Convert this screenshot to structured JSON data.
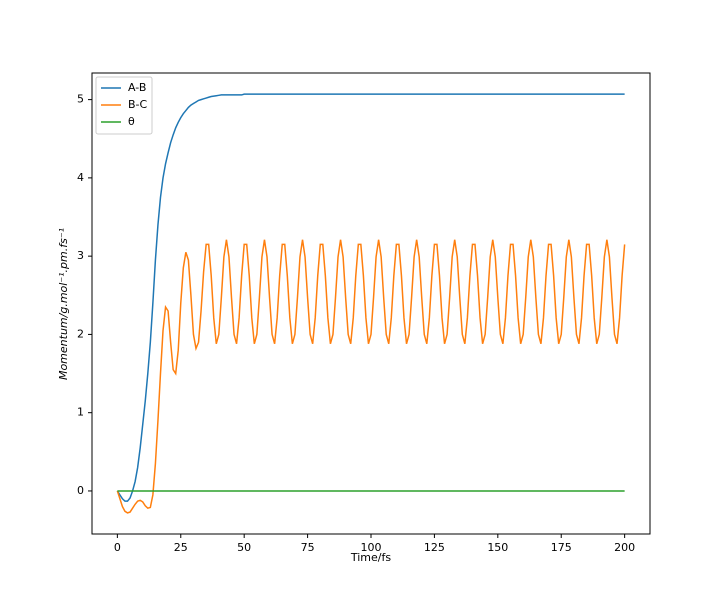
{
  "chart_data": {
    "type": "line",
    "xlabel": "Time/fs",
    "ylabel": "Momentum/g.mol⁻¹.pm.fs⁻¹",
    "x": [
      0,
      1,
      2,
      3,
      4,
      5,
      6,
      7,
      8,
      9,
      10,
      11,
      12,
      13,
      14,
      15,
      16,
      17,
      18,
      19,
      20,
      21,
      22,
      23,
      24,
      25,
      26,
      27,
      28,
      29,
      30,
      31,
      32,
      33,
      34,
      35,
      36,
      37,
      38,
      39,
      40,
      41,
      42,
      43,
      44,
      45,
      46,
      47,
      48,
      49,
      50,
      51,
      52,
      53,
      54,
      55,
      56,
      57,
      58,
      59,
      60,
      61,
      62,
      63,
      64,
      65,
      66,
      67,
      68,
      69,
      70,
      71,
      72,
      73,
      74,
      75,
      76,
      77,
      78,
      79,
      80,
      81,
      82,
      83,
      84,
      85,
      86,
      87,
      88,
      89,
      90,
      91,
      92,
      93,
      94,
      95,
      96,
      97,
      98,
      99,
      100,
      101,
      102,
      103,
      104,
      105,
      106,
      107,
      108,
      109,
      110,
      111,
      112,
      113,
      114,
      115,
      116,
      117,
      118,
      119,
      120,
      121,
      122,
      123,
      124,
      125,
      126,
      127,
      128,
      129,
      130,
      131,
      132,
      133,
      134,
      135,
      136,
      137,
      138,
      139,
      140,
      141,
      142,
      143,
      144,
      145,
      146,
      147,
      148,
      149,
      150,
      151,
      152,
      153,
      154,
      155,
      156,
      157,
      158,
      159,
      160,
      161,
      162,
      163,
      164,
      165,
      166,
      167,
      168,
      169,
      170,
      171,
      172,
      173,
      174,
      175,
      176,
      177,
      178,
      179,
      180,
      181,
      182,
      183,
      184,
      185,
      186,
      187,
      188,
      189,
      190,
      191,
      192,
      193,
      194,
      195,
      196,
      197,
      198,
      199,
      200
    ],
    "series": [
      {
        "name": "A-B",
        "color": "#1f77b4",
        "values": [
          0,
          -0.05,
          -0.1,
          -0.13,
          -0.13,
          -0.09,
          0.0,
          0.12,
          0.3,
          0.55,
          0.85,
          1.15,
          1.5,
          1.9,
          2.4,
          2.95,
          3.4,
          3.75,
          4.0,
          4.18,
          4.32,
          4.45,
          4.55,
          4.64,
          4.71,
          4.77,
          4.82,
          4.86,
          4.9,
          4.93,
          4.95,
          4.97,
          4.99,
          5.0,
          5.01,
          5.02,
          5.03,
          5.04,
          5.045,
          5.05,
          5.055,
          5.06,
          5.06,
          5.06,
          5.06,
          5.06,
          5.06,
          5.06,
          5.06,
          5.06,
          5.07,
          5.07,
          5.07,
          5.07,
          5.07,
          5.07,
          5.07,
          5.07,
          5.07,
          5.07,
          5.07,
          5.07,
          5.07,
          5.07,
          5.07,
          5.07,
          5.07,
          5.07,
          5.07,
          5.07,
          5.07,
          5.07,
          5.07,
          5.07,
          5.07,
          5.07,
          5.07,
          5.07,
          5.07,
          5.07,
          5.07,
          5.07,
          5.07,
          5.07,
          5.07,
          5.07,
          5.07,
          5.07,
          5.07,
          5.07,
          5.07,
          5.07,
          5.07,
          5.07,
          5.07,
          5.07,
          5.07,
          5.07,
          5.07,
          5.07,
          5.07,
          5.07,
          5.07,
          5.07,
          5.07,
          5.07,
          5.07,
          5.07,
          5.07,
          5.07,
          5.07,
          5.07,
          5.07,
          5.07,
          5.07,
          5.07,
          5.07,
          5.07,
          5.07,
          5.07,
          5.07,
          5.07,
          5.07,
          5.07,
          5.07,
          5.07,
          5.07,
          5.07,
          5.07,
          5.07,
          5.07,
          5.07,
          5.07,
          5.07,
          5.07,
          5.07,
          5.07,
          5.07,
          5.07,
          5.07,
          5.07,
          5.07,
          5.07,
          5.07,
          5.07,
          5.07,
          5.07,
          5.07,
          5.07,
          5.07,
          5.07,
          5.07,
          5.07,
          5.07,
          5.07,
          5.07,
          5.07,
          5.07,
          5.07,
          5.07,
          5.07,
          5.07,
          5.07,
          5.07,
          5.07,
          5.07,
          5.07,
          5.07,
          5.07,
          5.07,
          5.07,
          5.07,
          5.07,
          5.07,
          5.07,
          5.07,
          5.07,
          5.07,
          5.07,
          5.07,
          5.07,
          5.07,
          5.07,
          5.07,
          5.07,
          5.07,
          5.07,
          5.07,
          5.07,
          5.07,
          5.07,
          5.07,
          5.07,
          5.07,
          5.07,
          5.07,
          5.07,
          5.07,
          5.07,
          5.07,
          5.07
        ]
      },
      {
        "name": "B-C",
        "color": "#ff7f0e",
        "values": [
          0,
          -0.1,
          -0.2,
          -0.26,
          -0.28,
          -0.27,
          -0.22,
          -0.17,
          -0.13,
          -0.12,
          -0.14,
          -0.19,
          -0.22,
          -0.21,
          -0.05,
          0.35,
          0.9,
          1.5,
          2.05,
          2.35,
          2.3,
          1.9,
          1.55,
          1.5,
          1.8,
          2.4,
          2.85,
          3.05,
          2.95,
          2.5,
          2.0,
          1.82,
          1.9,
          2.3,
          2.8,
          3.15,
          3.15,
          2.75,
          2.21,
          1.88,
          2.0,
          2.47,
          2.99,
          3.21,
          2.99,
          2.47,
          2.0,
          1.88,
          2.21,
          2.75,
          3.15,
          3.15,
          2.75,
          2.21,
          1.88,
          2.0,
          2.47,
          2.99,
          3.21,
          2.99,
          2.47,
          2.0,
          1.88,
          2.21,
          2.75,
          3.15,
          3.15,
          2.75,
          2.21,
          1.88,
          2.0,
          2.47,
          2.99,
          3.21,
          2.99,
          2.47,
          2.0,
          1.88,
          2.21,
          2.75,
          3.15,
          3.15,
          2.75,
          2.21,
          1.88,
          2.0,
          2.47,
          2.99,
          3.21,
          2.99,
          2.47,
          2.0,
          1.88,
          2.21,
          2.75,
          3.15,
          3.15,
          2.75,
          2.21,
          1.88,
          2.0,
          2.47,
          2.99,
          3.21,
          2.99,
          2.47,
          2.0,
          1.88,
          2.21,
          2.75,
          3.15,
          3.15,
          2.75,
          2.21,
          1.88,
          2.0,
          2.47,
          2.99,
          3.21,
          2.99,
          2.47,
          2.0,
          1.88,
          2.21,
          2.75,
          3.15,
          3.15,
          2.75,
          2.21,
          1.88,
          2.0,
          2.47,
          2.99,
          3.21,
          2.99,
          2.47,
          2.0,
          1.88,
          2.21,
          2.75,
          3.15,
          3.15,
          2.75,
          2.21,
          1.88,
          2.0,
          2.47,
          2.99,
          3.21,
          2.99,
          2.47,
          2.0,
          1.88,
          2.21,
          2.75,
          3.15,
          3.15,
          2.75,
          2.21,
          1.88,
          2.0,
          2.47,
          2.99,
          3.21,
          2.99,
          2.47,
          2.0,
          1.88,
          2.21,
          2.75,
          3.15,
          3.15,
          2.75,
          2.21,
          1.88,
          2.0,
          2.47,
          2.99,
          3.21,
          2.99,
          2.47,
          2.0,
          1.88,
          2.21,
          2.75,
          3.15,
          3.15,
          2.75,
          2.21,
          1.88,
          2.0,
          2.47,
          2.99,
          3.21,
          2.99,
          2.47,
          2.0,
          1.88,
          2.21,
          2.75,
          3.15
        ]
      },
      {
        "name": "θ",
        "color": "#2ca02c",
        "values": [
          0,
          0,
          0,
          0,
          0,
          0,
          0,
          0,
          0,
          0,
          0,
          0,
          0,
          0,
          0,
          0,
          0,
          0,
          0,
          0,
          0,
          0,
          0,
          0,
          0,
          0,
          0,
          0,
          0,
          0,
          0,
          0,
          0,
          0,
          0,
          0,
          0,
          0,
          0,
          0,
          0,
          0,
          0,
          0,
          0,
          0,
          0,
          0,
          0,
          0,
          0,
          0,
          0,
          0,
          0,
          0,
          0,
          0,
          0,
          0,
          0,
          0,
          0,
          0,
          0,
          0,
          0,
          0,
          0,
          0,
          0,
          0,
          0,
          0,
          0,
          0,
          0,
          0,
          0,
          0,
          0,
          0,
          0,
          0,
          0,
          0,
          0,
          0,
          0,
          0,
          0,
          0,
          0,
          0,
          0,
          0,
          0,
          0,
          0,
          0,
          0,
          0,
          0,
          0,
          0,
          0,
          0,
          0,
          0,
          0,
          0,
          0,
          0,
          0,
          0,
          0,
          0,
          0,
          0,
          0,
          0,
          0,
          0,
          0,
          0,
          0,
          0,
          0,
          0,
          0,
          0,
          0,
          0,
          0,
          0,
          0,
          0,
          0,
          0,
          0,
          0,
          0,
          0,
          0,
          0,
          0,
          0,
          0,
          0,
          0,
          0,
          0,
          0,
          0,
          0,
          0,
          0,
          0,
          0,
          0,
          0,
          0,
          0,
          0,
          0,
          0,
          0,
          0,
          0,
          0,
          0,
          0,
          0,
          0,
          0,
          0,
          0,
          0,
          0,
          0,
          0,
          0,
          0,
          0,
          0,
          0,
          0,
          0,
          0,
          0,
          0,
          0,
          0,
          0,
          0,
          0,
          0,
          0,
          0,
          0,
          0
        ]
      }
    ],
    "xlim": [
      -10,
      210
    ],
    "xticks": [
      0,
      25,
      50,
      75,
      100,
      125,
      150,
      175,
      200
    ],
    "ylim": [
      -0.55,
      5.34
    ],
    "yticks": [
      0,
      1,
      2,
      3,
      4,
      5
    ],
    "grid": false,
    "legend": "upper left"
  }
}
